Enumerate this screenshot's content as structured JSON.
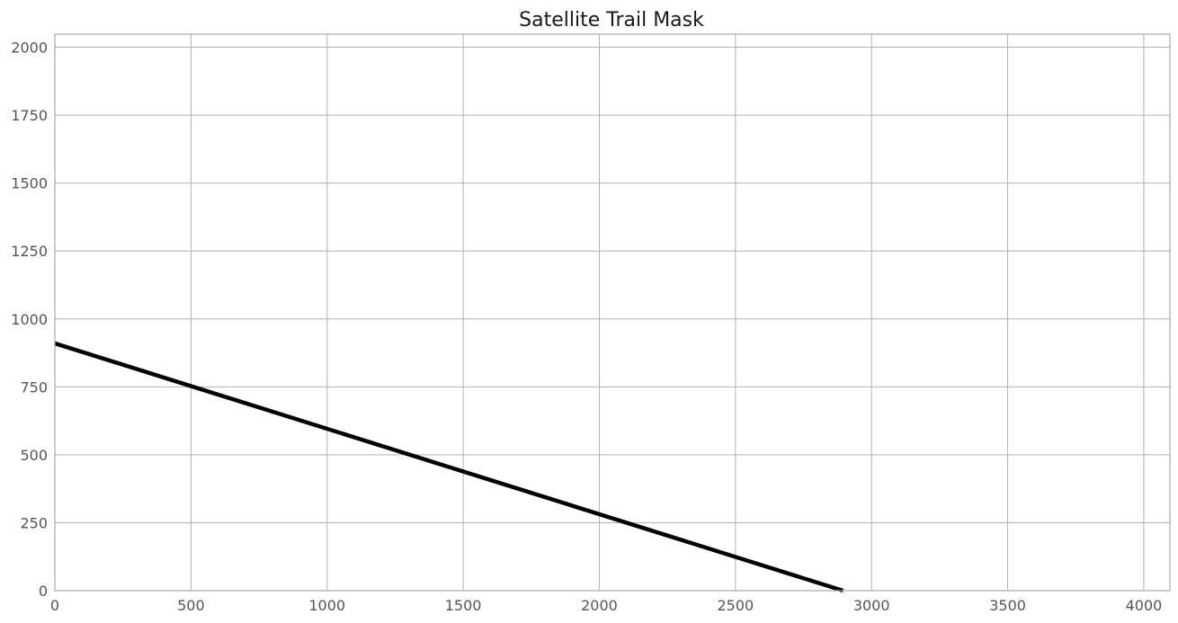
{
  "chart_data": {
    "type": "line",
    "title": "Satellite Trail Mask",
    "xlabel": "",
    "ylabel": "",
    "xlim": [
      0,
      4096
    ],
    "ylim": [
      0,
      2048
    ],
    "x_ticks": [
      0,
      500,
      1000,
      1500,
      2000,
      2500,
      3000,
      3500,
      4000
    ],
    "y_ticks": [
      0,
      250,
      500,
      750,
      1000,
      1250,
      1500,
      1750,
      2000
    ],
    "grid": true,
    "legend": "none",
    "series": [
      {
        "x": [
          0,
          2895
        ],
        "y": [
          910,
          0
        ],
        "color": "#000000"
      }
    ]
  }
}
